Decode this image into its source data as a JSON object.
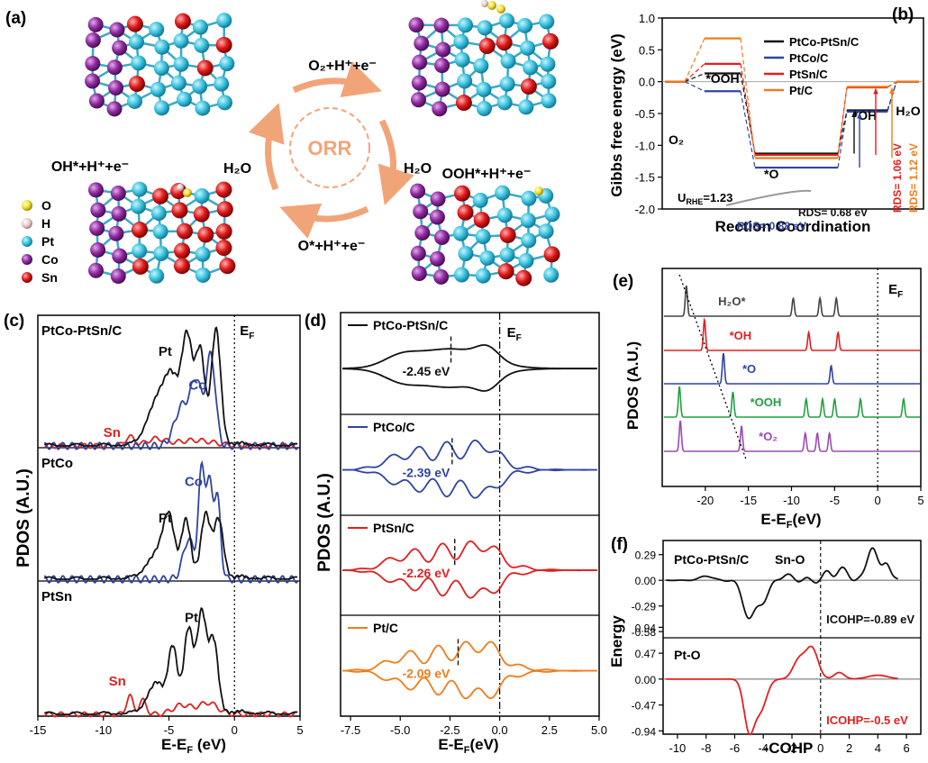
{
  "panels": {
    "a": {
      "label": "(a)",
      "center": "ORR",
      "steps": [
        "O₂+H⁺+e⁻",
        "OOH*+H⁺+e⁻",
        "O*+H⁺+e⁻",
        "OH*+H⁺+e⁻"
      ],
      "h2o": [
        "H₂O",
        "H₂O"
      ],
      "legend": [
        {
          "name": "O",
          "color": "#f2e23a"
        },
        {
          "name": "H",
          "color": "#e8c8c8"
        },
        {
          "name": "Pt",
          "color": "#3ec4e0"
        },
        {
          "name": "Co",
          "color": "#8e2c9e"
        },
        {
          "name": "Sn",
          "color": "#e01a1a"
        }
      ]
    },
    "b": {
      "label": "(b)"
    },
    "c": {
      "label": "(c)"
    },
    "d": {
      "label": "(d)"
    },
    "e": {
      "label": "(e)"
    },
    "f": {
      "label": "(f)"
    }
  },
  "chart_data": [
    {
      "id": "b",
      "type": "line",
      "ylabel": "Gibbs free energy (eV)",
      "xlabel": "Rection Coordination",
      "ylim": [
        -2.0,
        1.0
      ],
      "yticks": [
        "1.0",
        "0.5",
        "0.0",
        "-0.5",
        "-1.0",
        "-1.5",
        "-2.0"
      ],
      "states": [
        "O₂",
        "*OOH",
        "*O",
        "*OH",
        "H₂O"
      ],
      "series": [
        {
          "name": "PtCo-PtSn/C",
          "color": "#111111",
          "values": [
            0,
            0.13,
            -1.13,
            -0.45,
            0
          ]
        },
        {
          "name": "PtCo/C",
          "color": "#2f45a0",
          "values": [
            0,
            -0.15,
            -1.35,
            -0.47,
            0
          ]
        },
        {
          "name": "PtSn/C",
          "color": "#e02020",
          "values": [
            0,
            0.28,
            -1.15,
            -0.09,
            0
          ]
        },
        {
          "name": "Pt/C",
          "color": "#f07c1a",
          "values": [
            0,
            0.68,
            -1.2,
            -0.08,
            0
          ]
        }
      ],
      "annotations": {
        "urhe": "U",
        "urhe_sub": "RHE",
        "urhe_val": "=1.23",
        "rds": [
          {
            "text": "RDS= 0.68 eV",
            "color": "#111111"
          },
          {
            "text": "RDS= 0.88 eV",
            "color": "#2f45a0"
          },
          {
            "text": "RDS= 1.06 eV",
            "color": "#e02020"
          },
          {
            "text": "RDS= 1.12 eV",
            "color": "#f07c1a"
          }
        ]
      }
    },
    {
      "id": "c",
      "type": "line",
      "ylabel": "PDOS (A.U.)",
      "xlabel": "E-E",
      "xlabel_sub": "F",
      "xlabel_unit": " (eV)",
      "xlim": [
        -15,
        5
      ],
      "xticks": [
        "-15",
        "-10",
        "-5",
        "0",
        "5"
      ],
      "fermi_label": "E",
      "fermi_sub": "F",
      "subpanels": [
        {
          "title": "PtCo-PtSn/C",
          "labels": [
            {
              "text": "Pt",
              "color": "#111111"
            },
            {
              "text": "Co",
              "color": "#2f45a0"
            },
            {
              "text": "Sn",
              "color": "#e02020"
            }
          ]
        },
        {
          "title": "PtCo",
          "labels": [
            {
              "text": "Pt",
              "color": "#111111"
            },
            {
              "text": "Co",
              "color": "#2f45a0"
            }
          ]
        },
        {
          "title": "PtSn",
          "labels": [
            {
              "text": "Pt",
              "color": "#111111"
            },
            {
              "text": "Sn",
              "color": "#e02020"
            }
          ]
        }
      ]
    },
    {
      "id": "d",
      "type": "line",
      "ylabel": "PDOS (A.U.)",
      "xlabel": "E-E",
      "xlabel_sub": "F",
      "xlabel_unit": "(eV)",
      "xlim": [
        -8,
        5
      ],
      "xticks": [
        "-7.5",
        "-5.0",
        "-2.5",
        "0.0",
        "2.5",
        "5.0"
      ],
      "fermi_label": "E",
      "fermi_sub": "F",
      "subpanels": [
        {
          "title": "PtCo-PtSn/C",
          "center": "-2.45 eV",
          "color": "#111111",
          "center_x": -2.45
        },
        {
          "title": "PtCo/C",
          "center": "-2.39 eV",
          "color": "#2f45a0",
          "center_x": -2.39
        },
        {
          "title": "PtSn/C",
          "center": "-2.26 eV",
          "color": "#e02020",
          "center_x": -2.26
        },
        {
          "title": "Pt/C",
          "center": "-2.09 eV",
          "color": "#f07c1a",
          "center_x": -2.09
        }
      ]
    },
    {
      "id": "e",
      "type": "line",
      "ylabel": "PDOS (A.U.)",
      "xlabel": "E-E",
      "xlabel_sub": "F",
      "xlabel_unit": "(eV)",
      "xlim": [
        -25,
        5
      ],
      "xticks": [
        "-20",
        "-15",
        "-10",
        "-5",
        "0",
        "5"
      ],
      "fermi_label": "E",
      "fermi_sub": "F",
      "series": [
        {
          "name": "H₂O*",
          "color": "#444444",
          "peaks": [
            -22.2,
            -9.8,
            -6.7,
            -4.8
          ]
        },
        {
          "name": "*OH",
          "color": "#e02020",
          "peaks": [
            -20.1,
            -8.0,
            -4.6
          ]
        },
        {
          "name": "*O",
          "color": "#2f45a0",
          "peaks": [
            -17.9,
            -5.4
          ]
        },
        {
          "name": "*OOH",
          "color": "#22a040",
          "peaks": [
            -23.0,
            -16.8,
            -8.3,
            -6.4,
            -5.0,
            -2.0,
            3.0
          ]
        },
        {
          "name": "*O₂",
          "color": "#9a4bb0",
          "peaks": [
            -22.9,
            -15.8,
            -8.4,
            -7.0,
            -5.6
          ]
        }
      ]
    },
    {
      "id": "f",
      "type": "line",
      "ylabel": "Energy",
      "xlabel": "-COHP",
      "xlim": [
        -11,
        7
      ],
      "xticks": [
        "-10",
        "-8",
        "-6",
        "-4",
        "-2",
        "0",
        "2",
        "4",
        "6"
      ],
      "subpanels": [
        {
          "title": "PtCo-PtSn/C",
          "bond": "Sn-O",
          "icohp": "ICOHP=-0.89 eV",
          "color": "#111111",
          "yticks": [
            "0.29",
            "0.00",
            "-0.29",
            "-0.58"
          ],
          "ylim": [
            -0.65,
            0.45
          ]
        },
        {
          "title": "",
          "bond": "Pt-O",
          "icohp": "ICOHP=-0.5 eV",
          "color": "#e02020",
          "yticks": [
            "0.94",
            "0.47",
            "0.00",
            "-0.47",
            "-0.94"
          ],
          "ylim": [
            -1.0,
            0.75
          ]
        }
      ]
    }
  ]
}
